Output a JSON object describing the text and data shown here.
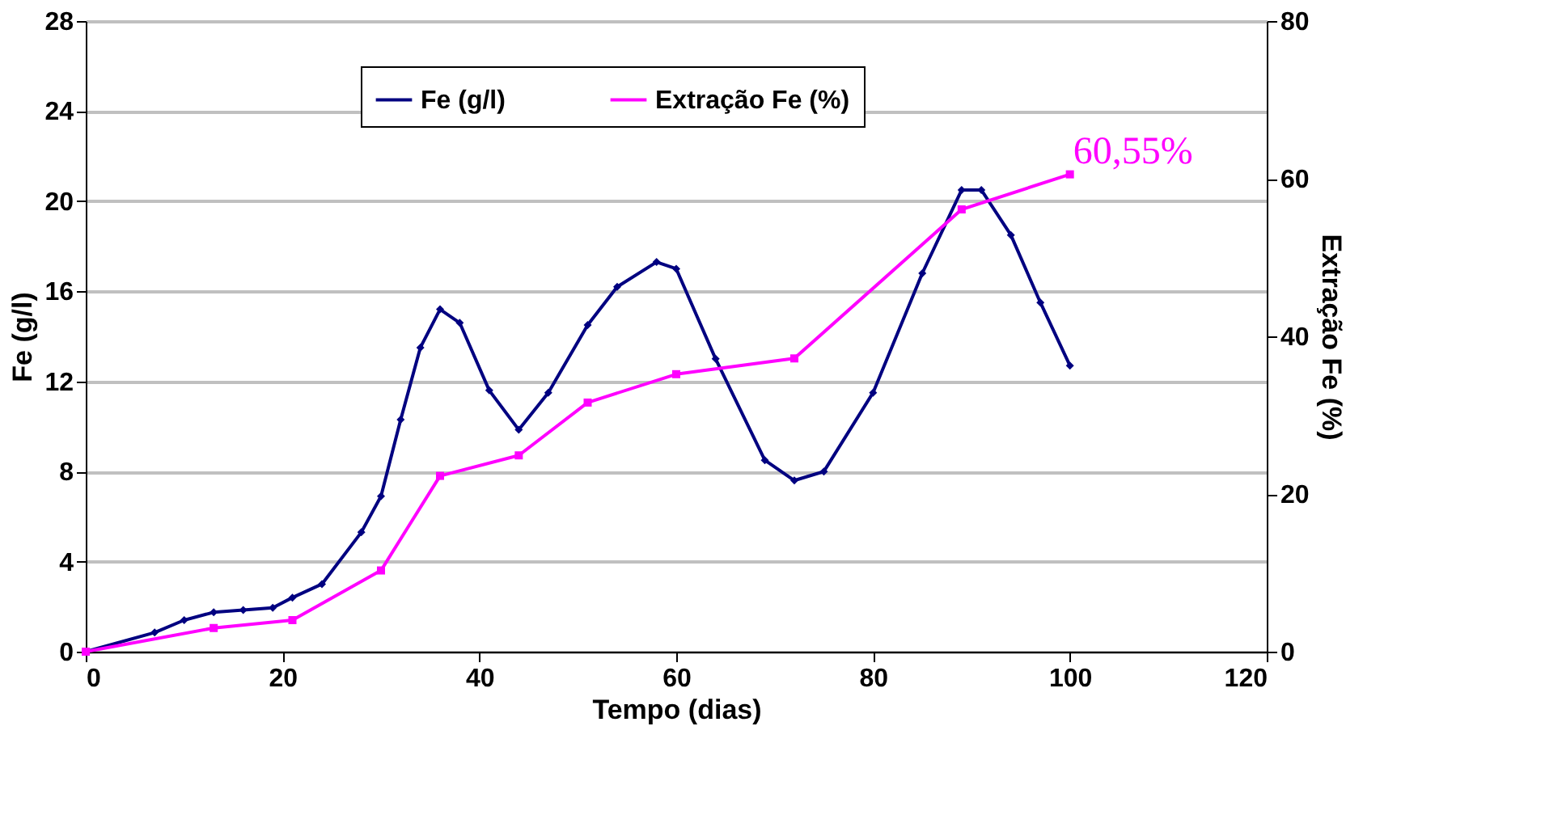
{
  "chart_data": {
    "type": "line",
    "xlabel": "Tempo (dias)",
    "ylabel": "Fe (g/l)",
    "y2label": "Extração Fe (%)",
    "xlim": [
      0,
      120
    ],
    "xticks": [
      0,
      20,
      40,
      60,
      80,
      100,
      120
    ],
    "ylim": [
      0,
      28
    ],
    "yticks": [
      0,
      4,
      8,
      12,
      16,
      20,
      24,
      28
    ],
    "y2lim": [
      0,
      80
    ],
    "y2ticks": [
      0,
      20,
      40,
      60,
      80
    ],
    "grid": "y",
    "legend": "top",
    "marker": "diamond",
    "line_style": "solid",
    "series": [
      {
        "name": "Fe (g/l)",
        "color": "#000080",
        "x": [
          0,
          7,
          10,
          13,
          16,
          19,
          21,
          24,
          28,
          30,
          32,
          34,
          36,
          38,
          41,
          44,
          47,
          51,
          54,
          58,
          60,
          64,
          69,
          72,
          75,
          80,
          85,
          89,
          91,
          94,
          97,
          100
        ],
        "values": [
          0,
          0.85,
          1.4,
          1.75,
          1.85,
          1.95,
          2.4,
          3.0,
          5.3,
          6.9,
          10.3,
          13.5,
          15.2,
          14.6,
          11.6,
          9.85,
          11.5,
          14.5,
          16.2,
          17.3,
          17.0,
          13.0,
          8.5,
          7.6,
          8.0,
          11.5,
          16.8,
          20.5,
          20.5,
          18.5,
          15.5,
          12.7
        ]
      },
      {
        "name": "Extração Fe (%)",
        "color": "#ff00ff",
        "axis": "y2",
        "marker": "square",
        "x": [
          0,
          13,
          21,
          30,
          36,
          44,
          51,
          60,
          72,
          89,
          100
        ],
        "values": [
          0,
          3.0,
          4.0,
          10.3,
          22.3,
          24.9,
          31.6,
          35.2,
          37.2,
          56.1,
          60.55
        ]
      }
    ],
    "annotations": [
      "60,55%"
    ]
  }
}
